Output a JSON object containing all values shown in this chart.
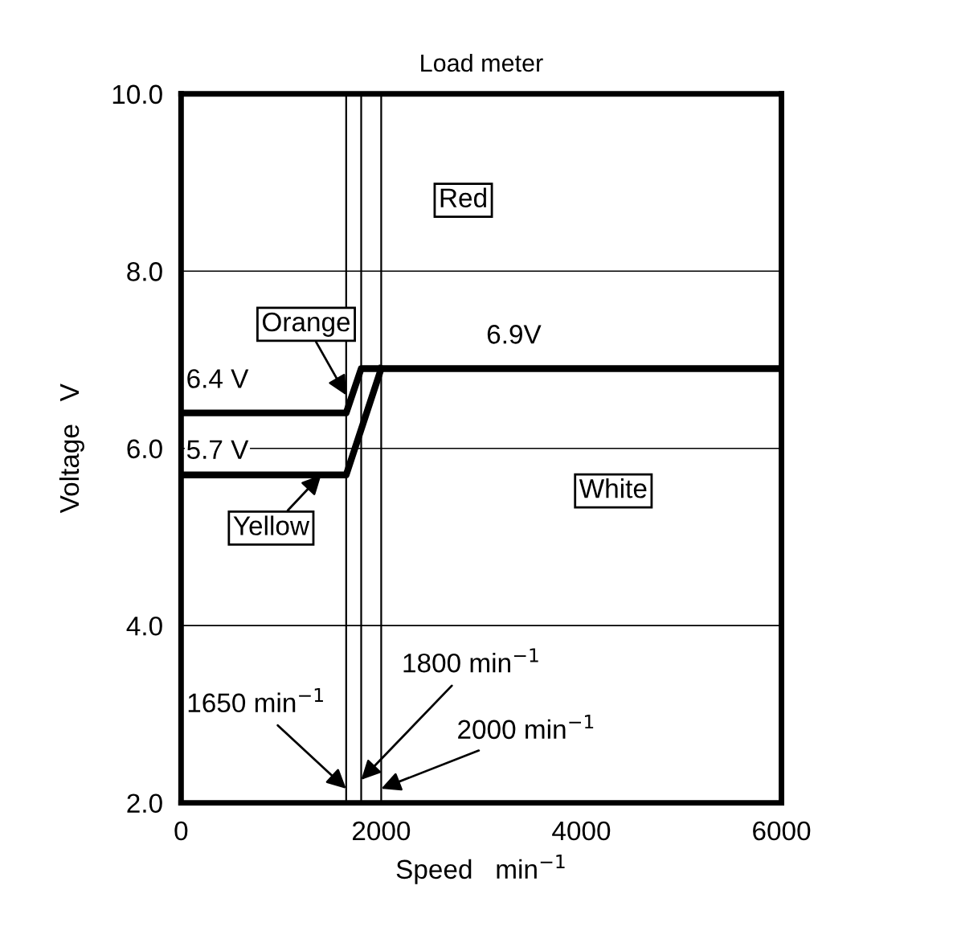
{
  "chart_data": {
    "type": "line",
    "title": "Load meter",
    "xlabel": "Speed   min$^{−1}$",
    "ylabel": "Voltage   V",
    "series": [
      {
        "color": "#000000",
        "x": [
          0,
          1650,
          1800,
          6000
        ],
        "values": [
          6.4,
          6.4,
          6.9,
          6.9
        ]
      },
      {
        "color": "#000000",
        "x": [
          0,
          1650,
          2000
        ],
        "values": [
          5.7,
          5.7,
          6.9
        ]
      }
    ],
    "xlim": [
      0,
      6000
    ],
    "ylim": [
      2,
      10
    ],
    "xticks": [
      0,
      2000,
      4000,
      6000
    ],
    "yticks": [
      {
        "value": 2,
        "label": "2.0"
      },
      {
        "value": 4,
        "label": "4.0"
      },
      {
        "value": 6,
        "label": "6.0"
      },
      {
        "value": 8,
        "label": "8.0"
      },
      {
        "value": 10,
        "label": "10.0"
      }
    ],
    "grid": "y",
    "marker": "none",
    "line_style": "solid",
    "annotations": [
      "Red",
      {
        "text": "Orange",
        "x": 1650,
        "y": 6.6
      },
      "White",
      {
        "text": "Yellow",
        "x": 1400,
        "y": 5.7
      },
      {
        "text": "6.9V",
        "x": 2450,
        "y": 6.9
      },
      {
        "text": "6.4 V",
        "x": 0,
        "y": 6.4
      },
      {
        "text": "5.7 V",
        "x": 0,
        "y": 5.7
      }
    ],
    "ref_lines": [
      {
        "axis": "x",
        "value": 1650,
        "label": "1650 min$^{−1}$"
      },
      {
        "axis": "x",
        "value": 1800,
        "label": "1800 min$^{−1}$"
      },
      {
        "axis": "x",
        "value": 2000,
        "label": "2000 min$^{−1}$"
      }
    ]
  }
}
